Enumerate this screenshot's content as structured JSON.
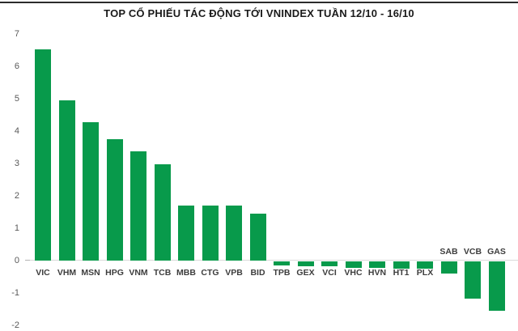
{
  "chart_data": {
    "type": "bar",
    "title": "TOP CỔ PHIẾU TÁC ĐỘNG TỚI VNINDEX TUẦN 12/10 - 16/10",
    "categories": [
      "VIC",
      "VHM",
      "MSN",
      "HPG",
      "VNM",
      "TCB",
      "MBB",
      "CTG",
      "VPB",
      "BID",
      "TPB",
      "GEX",
      "VCI",
      "VHC",
      "HVN",
      "HT1",
      "PLX",
      "SAB",
      "VCB",
      "GAS"
    ],
    "values": [
      6.53,
      4.94,
      4.28,
      3.76,
      3.38,
      2.98,
      1.71,
      1.7,
      1.7,
      1.44,
      -0.13,
      -0.14,
      -0.16,
      -0.2,
      -0.21,
      -0.22,
      -0.23,
      -0.38,
      -1.15,
      -1.52
    ],
    "categories_labeled_above_axis": [
      "SAB",
      "VCB",
      "GAS"
    ],
    "xlabel": "",
    "ylabel": "",
    "ylim": [
      -2,
      7
    ],
    "y_ticks": [
      7,
      6,
      5,
      4,
      3,
      2,
      1,
      0,
      -1,
      -2
    ],
    "grid": false,
    "legend_position": "none",
    "colors": {
      "bar": "#089a4b",
      "axis_line": "#d9d9d9",
      "y_tick_label": "#595959",
      "category_label": "#3d3d3d",
      "title": "#1a1a1a",
      "top_rule": "#2b2b2b",
      "background": "#ffffff"
    }
  }
}
